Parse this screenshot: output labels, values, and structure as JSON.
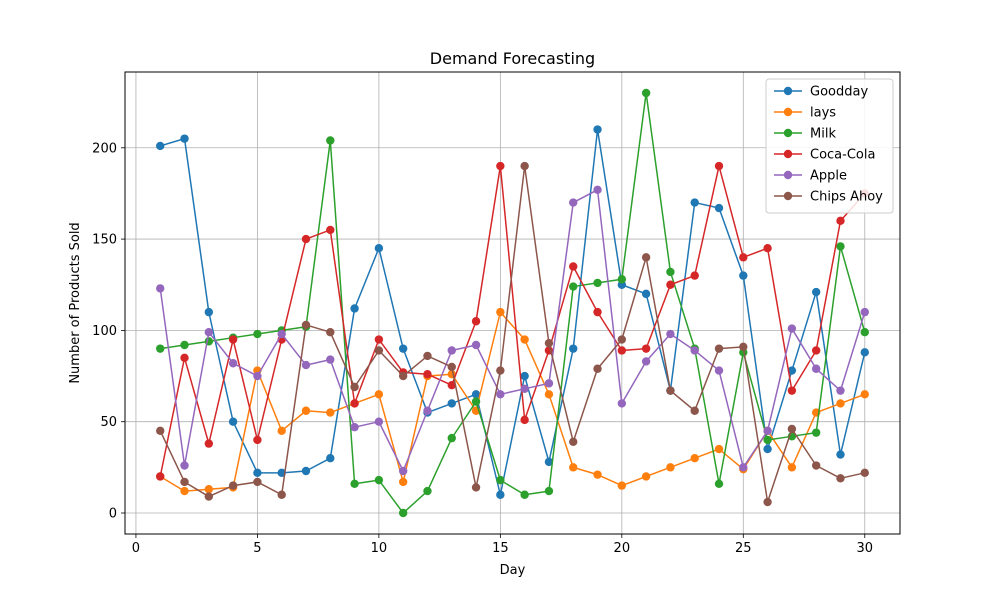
{
  "chart_data": {
    "type": "line",
    "title": "Demand Forecasting",
    "xlabel": "Day",
    "ylabel": "Number of Products Sold",
    "xlim": [
      -0.45,
      31.45
    ],
    "ylim": [
      -11.5,
      241.5
    ],
    "xticks": [
      0,
      5,
      10,
      15,
      20,
      25,
      30
    ],
    "yticks": [
      0,
      50,
      100,
      150,
      200
    ],
    "grid": true,
    "legend_position": "top-right",
    "x": [
      1,
      2,
      3,
      4,
      5,
      6,
      7,
      8,
      9,
      10,
      11,
      12,
      13,
      14,
      15,
      16,
      17,
      18,
      19,
      20,
      21,
      22,
      23,
      24,
      25,
      26,
      27,
      28,
      29,
      30
    ],
    "series": [
      {
        "name": "Goodday",
        "color": "#1f77b4",
        "values": [
          201,
          205,
          110,
          50,
          22,
          22,
          23,
          30,
          112,
          145,
          90,
          55,
          60,
          65,
          10,
          75,
          28,
          90,
          210,
          125,
          120,
          67,
          170,
          167,
          130,
          35,
          78,
          121,
          32,
          88
        ]
      },
      {
        "name": "lays",
        "color": "#ff7f0e",
        "values": [
          20,
          12,
          13,
          14,
          78,
          45,
          56,
          55,
          60,
          65,
          17,
          75,
          76,
          56,
          110,
          95,
          65,
          25,
          21,
          15,
          20,
          25,
          30,
          35,
          24,
          45,
          25,
          55,
          60,
          65
        ]
      },
      {
        "name": "Milk",
        "color": "#2ca02c",
        "values": [
          90,
          92,
          94,
          96,
          98,
          100,
          102,
          204,
          16,
          18,
          0,
          12,
          41,
          61,
          18,
          10,
          12,
          124,
          126,
          128,
          230,
          132,
          90,
          16,
          88,
          40,
          42,
          44,
          146,
          99
        ]
      },
      {
        "name": "Coca-Cola",
        "color": "#d62728",
        "values": [
          20,
          85,
          38,
          95,
          40,
          95,
          150,
          155,
          60,
          95,
          77,
          76,
          70,
          105,
          190,
          51,
          89,
          135,
          110,
          89,
          90,
          125,
          130,
          190,
          140,
          145,
          67,
          89,
          160,
          175
        ]
      },
      {
        "name": "Apple",
        "color": "#9467bd",
        "values": [
          123,
          26,
          99,
          82,
          75,
          98,
          81,
          84,
          47,
          50,
          23,
          56,
          89,
          92,
          65,
          68,
          71,
          170,
          177,
          60,
          83,
          98,
          89,
          78,
          25,
          45,
          101,
          79,
          67,
          110
        ]
      },
      {
        "name": "Chips Ahoy",
        "color": "#8c564b",
        "values": [
          45,
          17,
          9,
          15,
          17,
          10,
          103,
          99,
          69,
          89,
          75,
          86,
          80,
          14,
          78,
          190,
          93,
          39,
          79,
          95,
          140,
          67,
          56,
          90,
          91,
          6,
          46,
          26,
          19,
          22
        ]
      }
    ]
  }
}
